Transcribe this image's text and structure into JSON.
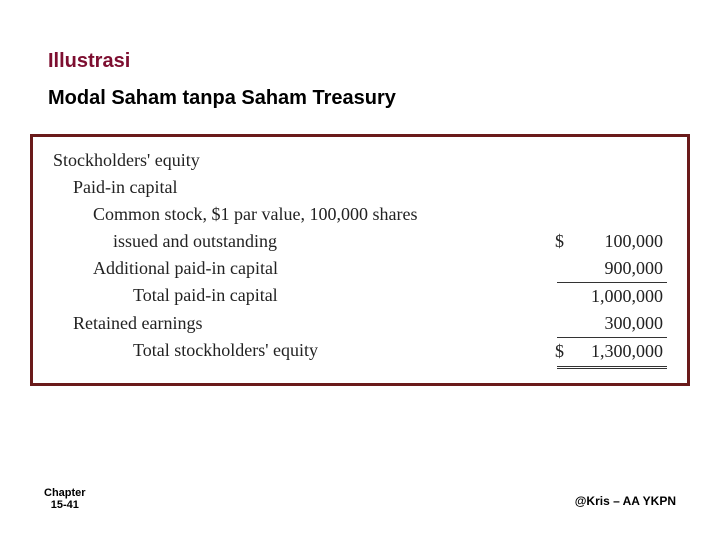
{
  "heading": {
    "title": "Illustrasi",
    "title_color": "#7d0e30",
    "title_fontsize": 20,
    "subtitle": "Modal Saham tanpa Saham Treasury",
    "subtitle_color": "#000000",
    "subtitle_fontsize": 20
  },
  "statement": {
    "border_color": "#6a1a1a",
    "font_family": "Times New Roman",
    "text_color": "#222222",
    "fontsize": 18,
    "currency_symbol": "$",
    "lines": {
      "l1": "Stockholders' equity",
      "l2": "Paid-in capital",
      "l3": "Common stock, $1 par value, 100,000 shares",
      "l4": "issued and outstanding",
      "l5": "Additional paid-in capital",
      "l6": "Total paid-in capital",
      "l7": "Retained earnings",
      "l8": "Total stockholders' equity"
    },
    "amounts": {
      "common_stock": "100,000",
      "additional_paid_in": "900,000",
      "total_paid_in": "1,000,000",
      "retained_earnings": "300,000",
      "total_equity": "1,300,000"
    }
  },
  "footer": {
    "chapter_line1": "Chapter",
    "chapter_line2": "15-41",
    "credit": "@Kris – AA YKPN"
  }
}
